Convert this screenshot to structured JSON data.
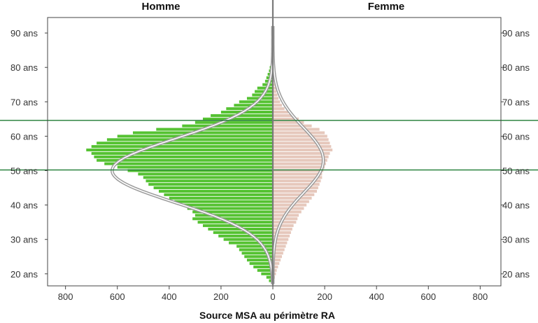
{
  "chart_data": {
    "type": "bar",
    "orientation": "horizontal-pyramid",
    "xlabel": "Source MSA au périmètre RA",
    "left_title": "Homme",
    "right_title": "Femme",
    "x_ticks": [
      "800",
      "600",
      "400",
      "200",
      "0",
      "200",
      "400",
      "600",
      "800"
    ],
    "x_tick_values": [
      -800,
      -600,
      -400,
      -200,
      0,
      200,
      400,
      600,
      800
    ],
    "xlim": [
      -880,
      880
    ],
    "y_ticks": [
      "20 ans",
      "30 ans",
      "40 ans",
      "50 ans",
      "60 ans",
      "70 ans",
      "80 ans",
      "90 ans"
    ],
    "y_tick_values": [
      20,
      30,
      40,
      50,
      60,
      70,
      80,
      90
    ],
    "ylim": [
      16.5,
      94.5
    ],
    "reference_lines": [
      50.2,
      64.6
    ],
    "ages": [
      18,
      19,
      20,
      21,
      22,
      23,
      24,
      25,
      26,
      27,
      28,
      29,
      30,
      31,
      32,
      33,
      34,
      35,
      36,
      37,
      38,
      39,
      40,
      41,
      42,
      43,
      44,
      45,
      46,
      47,
      48,
      49,
      50,
      51,
      52,
      53,
      54,
      55,
      56,
      57,
      58,
      59,
      60,
      61,
      62,
      63,
      64,
      65,
      66,
      67,
      68,
      69,
      70,
      71,
      72,
      73,
      74,
      75,
      76,
      77,
      78,
      79,
      80,
      81,
      82,
      83,
      84,
      85,
      86,
      87,
      88,
      89
    ],
    "series": [
      {
        "name": "Homme",
        "color": "#55c232",
        "values": [
          15,
          25,
          45,
          60,
          75,
          90,
          100,
          110,
          120,
          130,
          140,
          170,
          190,
          210,
          230,
          250,
          270,
          290,
          310,
          300,
          310,
          330,
          350,
          380,
          400,
          420,
          440,
          460,
          480,
          490,
          500,
          520,
          560,
          600,
          650,
          680,
          690,
          700,
          720,
          700,
          680,
          640,
          600,
          540,
          450,
          350,
          300,
          270,
          240,
          200,
          180,
          150,
          130,
          100,
          80,
          70,
          60,
          40,
          30,
          25,
          20,
          15,
          12,
          8,
          6,
          4,
          3,
          2,
          1,
          0,
          0,
          0
        ]
      },
      {
        "name": "Femme",
        "color": "#e6c8bc",
        "values": [
          5,
          8,
          12,
          15,
          20,
          25,
          30,
          35,
          40,
          45,
          50,
          55,
          60,
          65,
          70,
          75,
          80,
          90,
          95,
          100,
          110,
          120,
          130,
          140,
          150,
          160,
          170,
          175,
          180,
          185,
          190,
          190,
          195,
          200,
          205,
          210,
          215,
          220,
          230,
          225,
          220,
          215,
          210,
          200,
          180,
          150,
          120,
          100,
          80,
          60,
          45,
          35,
          28,
          22,
          18,
          14,
          12,
          10,
          9,
          8,
          7,
          6,
          5,
          4,
          3,
          2,
          2,
          1,
          1,
          0,
          0,
          0
        ]
      }
    ],
    "curves": [
      {
        "name": "normal-homme",
        "side": "left",
        "mean": 50,
        "sd": 9.3,
        "peak": 620,
        "color": "#9a9a9a"
      },
      {
        "name": "normal-femme",
        "side": "right",
        "mean": 53,
        "sd": 9.5,
        "peak": 195,
        "color": "#9a9a9a"
      }
    ],
    "reference_line_color": "#1e7a32",
    "grid": false
  }
}
